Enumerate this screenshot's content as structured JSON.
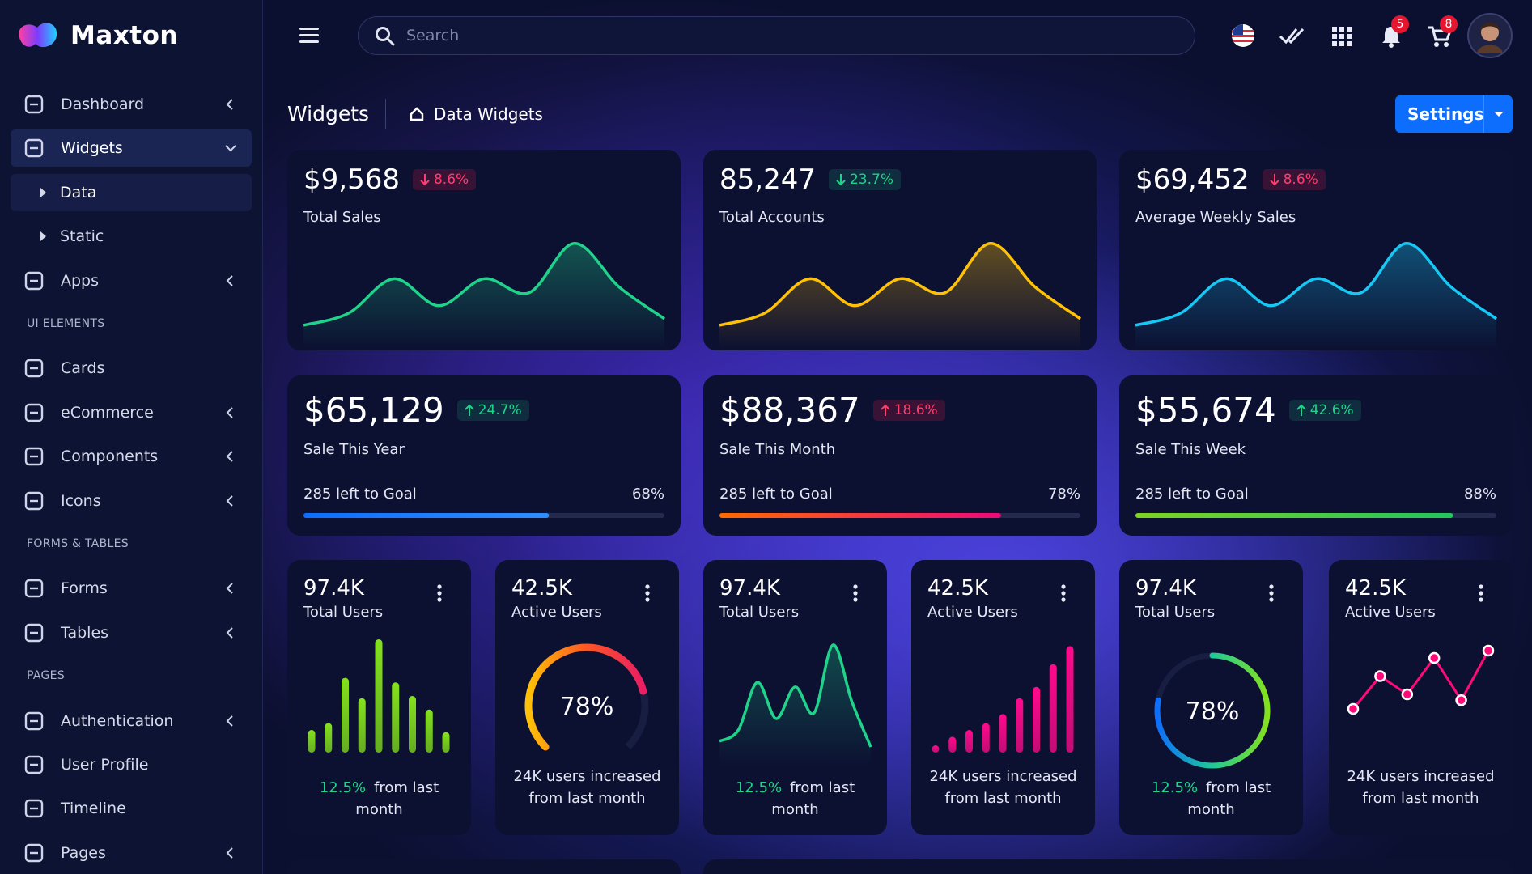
{
  "sidebar": {
    "brand": "Maxton",
    "items": [
      {
        "label": "Dashboard",
        "arrow": "left"
      },
      {
        "label": "Widgets",
        "arrow": "down",
        "active": true
      },
      {
        "label": "Data",
        "sub": true,
        "active": true
      },
      {
        "label": "Static",
        "sub": true
      },
      {
        "label": "Apps",
        "arrow": "left"
      },
      {
        "section": "UI ELEMENTS"
      },
      {
        "label": "Cards"
      },
      {
        "label": "eCommerce",
        "arrow": "left"
      },
      {
        "label": "Components",
        "arrow": "left"
      },
      {
        "label": "Icons",
        "arrow": "left"
      },
      {
        "section": "FORMS & TABLES"
      },
      {
        "label": "Forms",
        "arrow": "left"
      },
      {
        "label": "Tables",
        "arrow": "left"
      },
      {
        "section": "PAGES"
      },
      {
        "label": "Authentication",
        "arrow": "left"
      },
      {
        "label": "User Profile"
      },
      {
        "label": "Timeline"
      },
      {
        "label": "Pages",
        "arrow": "left"
      }
    ]
  },
  "topbar": {
    "search_placeholder": "Search",
    "notifications": "5",
    "cart": "8"
  },
  "header": {
    "title": "Widgets",
    "breadcrumb": "Data Widgets",
    "button": "Settings"
  },
  "stat_cards": [
    {
      "value": "$9,568",
      "change": "8.6%",
      "trend": "down",
      "badge": "red",
      "label": "Total Sales",
      "color": "#1fd38b",
      "sparkline": {
        "ylim": [
          0,
          100
        ],
        "values": [
          7,
          20,
          57,
          28,
          57,
          42,
          95,
          48,
          14
        ]
      }
    },
    {
      "value": "85,247",
      "change": "23.7%",
      "trend": "down",
      "badge": "green",
      "label": "Total Accounts",
      "color": "#ffc107",
      "sparkline": {
        "ylim": [
          0,
          100
        ],
        "values": [
          7,
          20,
          57,
          28,
          57,
          42,
          95,
          48,
          14
        ]
      }
    },
    {
      "value": "$69,452",
      "change": "8.6%",
      "trend": "down",
      "badge": "red",
      "label": "Average Weekly Sales",
      "color": "#17c8f5",
      "sparkline": {
        "ylim": [
          0,
          100
        ],
        "values": [
          7,
          20,
          57,
          28,
          57,
          42,
          95,
          48,
          14
        ]
      }
    }
  ],
  "progress_cards": [
    {
      "value": "$65,129",
      "change": "24.7%",
      "trend": "up",
      "badge": "green",
      "label": "Sale This Year",
      "goal": "285 left to Goal",
      "progress": {
        "value": 68,
        "label": "68%",
        "lim": [
          0,
          100
        ]
      },
      "colors": [
        "#0d6efd",
        "#2f8dff"
      ]
    },
    {
      "value": "$88,367",
      "change": "18.6%",
      "trend": "up",
      "badge": "red",
      "label": "Sale This Month",
      "goal": "285 left to Goal",
      "progress": {
        "value": 78,
        "label": "78%",
        "lim": [
          0,
          100
        ]
      },
      "colors": [
        "#ff6a00",
        "#ee0979"
      ]
    },
    {
      "value": "$55,674",
      "change": "42.6%",
      "trend": "up",
      "badge": "green",
      "label": "Sale This Week",
      "goal": "285 left to Goal",
      "progress": {
        "value": 88,
        "label": "88%",
        "lim": [
          0,
          100
        ]
      },
      "colors": [
        "#7ed321",
        "#22c55e"
      ]
    }
  ],
  "mini_cards": [
    {
      "value": "97.4K",
      "label": "Total Users",
      "chart": "bar",
      "color": "#84e11d",
      "data": {
        "ylim": [
          0,
          100
        ],
        "values": [
          20,
          26,
          66,
          48,
          100,
          62,
          50,
          38,
          18
        ]
      },
      "change": "12.5%",
      "footer": "from last month"
    },
    {
      "value": "42.5K",
      "label": "Active Users",
      "chart": "gauge",
      "colors": [
        "#ffc107",
        "#ff5722",
        "#e91e63"
      ],
      "gauge": {
        "value": 78,
        "label": "78%",
        "lim": [
          0,
          100
        ]
      },
      "footer": "24K users increased from last month"
    },
    {
      "value": "97.4K",
      "label": "Total Users",
      "chart": "area",
      "color": "#1fd38b",
      "data": {
        "ylim": [
          0,
          100
        ],
        "values": [
          10,
          20,
          62,
          30,
          58,
          35,
          95,
          45,
          5
        ]
      },
      "change": "12.5%",
      "footer": "from last month"
    },
    {
      "value": "42.5K",
      "label": "Active Users",
      "chart": "bar",
      "color": "#ff0a8c",
      "data": {
        "ylim": [
          0,
          100
        ],
        "values": [
          5,
          14,
          20,
          26,
          34,
          48,
          58,
          78,
          94
        ]
      },
      "footer": "24K users increased from last month"
    },
    {
      "value": "97.4K",
      "label": "Total Users",
      "chart": "ring",
      "colors": [
        "#0d6efd",
        "#20c997",
        "#84e11d"
      ],
      "gauge": {
        "value": 78,
        "label": "78%",
        "lim": [
          0,
          100
        ]
      },
      "change": "12.5%",
      "footer": "from last month"
    },
    {
      "value": "42.5K",
      "label": "Active Users",
      "chart": "line",
      "color": "#ff0a78",
      "data": {
        "ylim": [
          0,
          100
        ],
        "values": [
          10,
          55,
          30,
          80,
          22,
          90
        ]
      },
      "footer": "24K users increased from last month"
    }
  ]
}
